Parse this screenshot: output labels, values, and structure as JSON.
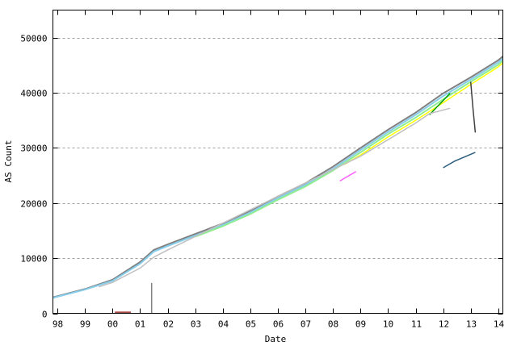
{
  "chart_data": {
    "type": "line",
    "title": "",
    "xlabel": "Date",
    "ylabel": "AS Count",
    "xlim": [
      "1997-11",
      "2014-03"
    ],
    "ylim": [
      0,
      55000
    ],
    "grid": {
      "y": true,
      "x": false,
      "style": "dashed",
      "color": "#a0a0a0"
    },
    "x_ticks": [
      {
        "date": "1998-01",
        "label": "98"
      },
      {
        "date": "1999-01",
        "label": "99"
      },
      {
        "date": "2000-01",
        "label": "00"
      },
      {
        "date": "2001-01",
        "label": "01"
      },
      {
        "date": "2002-01",
        "label": "02"
      },
      {
        "date": "2003-01",
        "label": "03"
      },
      {
        "date": "2004-01",
        "label": "04"
      },
      {
        "date": "2005-01",
        "label": "05"
      },
      {
        "date": "2006-01",
        "label": "06"
      },
      {
        "date": "2007-01",
        "label": "07"
      },
      {
        "date": "2008-01",
        "label": "08"
      },
      {
        "date": "2009-01",
        "label": "09"
      },
      {
        "date": "2010-01",
        "label": "10"
      },
      {
        "date": "2011-01",
        "label": "11"
      },
      {
        "date": "2012-01",
        "label": "12"
      },
      {
        "date": "2013-01",
        "label": "13"
      },
      {
        "date": "2014-01",
        "label": "14"
      }
    ],
    "y_ticks": [
      0,
      10000,
      20000,
      30000,
      40000,
      50000
    ],
    "series": [
      {
        "color": "#808080",
        "points": [
          [
            "1997-11",
            2900
          ],
          [
            "1999-01",
            4400
          ],
          [
            "2000-01",
            6100
          ],
          [
            "2001-01",
            9300
          ],
          [
            "2001-07",
            11500
          ],
          [
            "2002-01",
            12500
          ],
          [
            "2003-01",
            14400
          ],
          [
            "2004-01",
            16300
          ],
          [
            "2005-01",
            18600
          ],
          [
            "2006-01",
            21200
          ],
          [
            "2007-01",
            23600
          ],
          [
            "2008-01",
            26600
          ],
          [
            "2009-01",
            30000
          ],
          [
            "2010-01",
            33300
          ],
          [
            "2011-01",
            36400
          ],
          [
            "2012-01",
            39900
          ],
          [
            "2013-01",
            42800
          ],
          [
            "2014-01",
            45900
          ],
          [
            "2014-03",
            46600
          ]
        ]
      },
      {
        "color": "#87ceeb",
        "points": [
          [
            "1997-11",
            2800
          ],
          [
            "1999-01",
            4300
          ],
          [
            "2000-01",
            5900
          ],
          [
            "2001-01",
            9000
          ],
          [
            "2001-07",
            11200
          ],
          [
            "2002-01",
            12200
          ],
          [
            "2003-01",
            14100
          ],
          [
            "2004-01",
            16000
          ],
          [
            "2005-01",
            18300
          ],
          [
            "2006-01",
            20900
          ],
          [
            "2007-01",
            23300
          ],
          [
            "2008-01",
            26200
          ],
          [
            "2009-01",
            29600
          ],
          [
            "2010-01",
            32900
          ],
          [
            "2011-01",
            36000
          ],
          [
            "2012-01",
            39400
          ],
          [
            "2013-01",
            42400
          ],
          [
            "2014-01",
            45500
          ],
          [
            "2014-03",
            46200
          ]
        ]
      },
      {
        "color": "#90ee90",
        "points": [
          [
            "2003-01",
            13900
          ],
          [
            "2004-01",
            15800
          ],
          [
            "2005-01",
            18000
          ],
          [
            "2006-01",
            20600
          ],
          [
            "2007-01",
            23000
          ],
          [
            "2008-01",
            25900
          ],
          [
            "2009-01",
            29200
          ],
          [
            "2010-01",
            32500
          ],
          [
            "2011-01",
            35500
          ],
          [
            "2012-01",
            38800
          ],
          [
            "2013-01",
            42000
          ],
          [
            "2014-01",
            45100
          ],
          [
            "2014-03",
            45800
          ]
        ]
      },
      {
        "color": "#ffff00",
        "points": [
          [
            "2008-06",
            27000
          ],
          [
            "2009-01",
            28700
          ],
          [
            "2010-01",
            32000
          ],
          [
            "2011-01",
            35000
          ],
          [
            "2012-01",
            38200
          ],
          [
            "2013-01",
            41500
          ],
          [
            "2014-01",
            44700
          ],
          [
            "2014-03",
            45400
          ]
        ]
      },
      {
        "color": "#00a000",
        "points": [
          [
            "2011-07",
            36000
          ],
          [
            "2012-01",
            38600
          ],
          [
            "2012-04",
            39900
          ]
        ]
      },
      {
        "color": "#c0c0c0",
        "points": [
          [
            "1999-07",
            4800
          ],
          [
            "2000-01",
            5600
          ],
          [
            "2001-01",
            8200
          ],
          [
            "2001-07",
            10200
          ],
          [
            "2002-01",
            11500
          ],
          [
            "2009-01",
            28500
          ],
          [
            "2010-01",
            31500
          ],
          [
            "2011-01",
            34500
          ],
          [
            "2011-07",
            36200
          ],
          [
            "2012-04",
            37200
          ]
        ]
      },
      {
        "color": "#ff60ff",
        "points": [
          [
            "2008-04",
            24000
          ],
          [
            "2008-11",
            25700
          ]
        ]
      },
      {
        "color": "#2f5f7f",
        "points": [
          [
            "2012-01",
            26400
          ],
          [
            "2012-06",
            27600
          ],
          [
            "2013-03",
            29200
          ]
        ]
      },
      {
        "color": "#404040",
        "points": [
          [
            "2013-01",
            42000
          ],
          [
            "2013-02",
            37000
          ],
          [
            "2013-03",
            32800
          ]
        ]
      },
      {
        "color": "#808080",
        "points": [
          [
            "2001-06",
            5500
          ],
          [
            "2001-06",
            0
          ]
        ]
      },
      {
        "color": "#a03030",
        "points": [
          [
            "2000-02",
            200
          ],
          [
            "2000-09",
            200
          ]
        ]
      }
    ]
  }
}
